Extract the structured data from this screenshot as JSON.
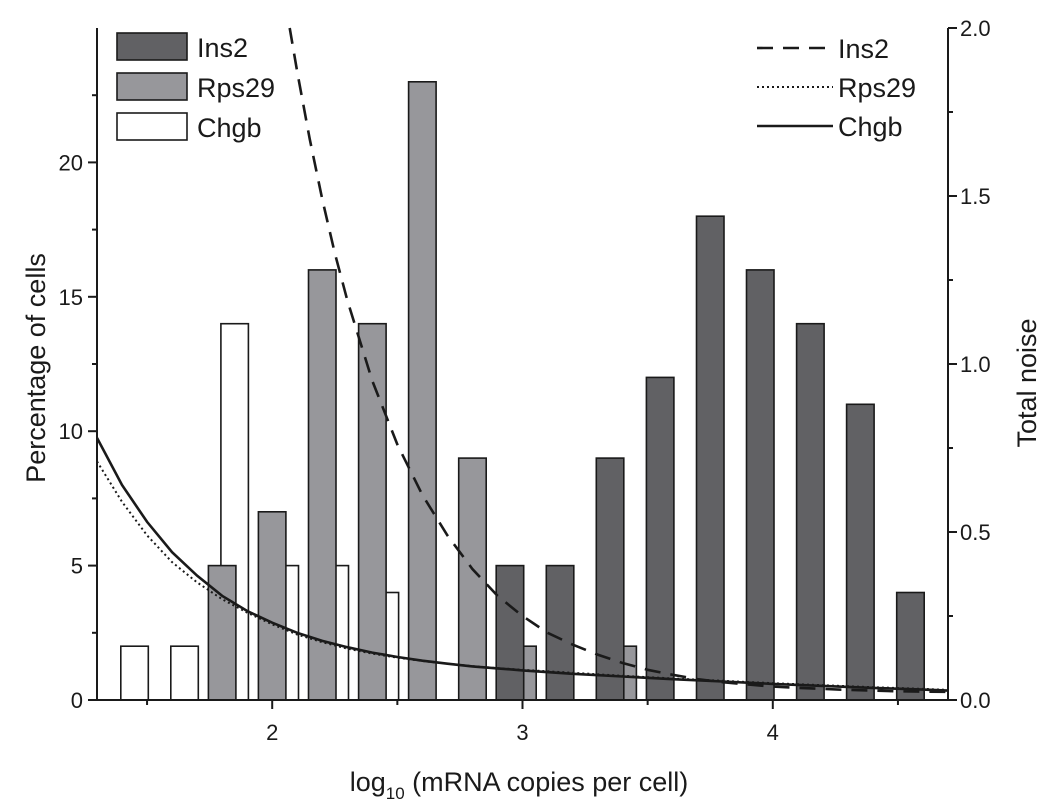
{
  "chart_data": {
    "type": "bar",
    "xlabel": "log",
    "xlabel_subscript": "10",
    "xlabel_rest": " (mRNA copies per cell)",
    "ylabel": "Percentage of cells",
    "y2label": "Total noise",
    "xlim": [
      1.3,
      4.7
    ],
    "ylim": [
      0,
      25
    ],
    "y2lim": [
      0,
      2.0
    ],
    "x_ticks": [
      2,
      3,
      4
    ],
    "x_tick_labels": [
      "2",
      "3",
      "4"
    ],
    "y_ticks": [
      0,
      5,
      10,
      15,
      20
    ],
    "y_tick_labels": [
      "0",
      "5",
      "10",
      "15",
      "20"
    ],
    "y2_ticks": [
      0,
      0.5,
      1.0,
      1.5,
      2.0
    ],
    "y2_tick_labels": [
      "0.0",
      "0.5",
      "1.0",
      "1.5",
      "2.0"
    ],
    "bar_width": 0.11,
    "bar_series": [
      {
        "name": "Chgb",
        "color": "#ffffff",
        "x": [
          1.45,
          1.65,
          1.85,
          2.05,
          2.25,
          2.45
        ],
        "values": [
          2,
          2,
          14,
          5,
          5,
          4
        ]
      },
      {
        "name": "Rps29",
        "color": "#97979b",
        "x": [
          1.8,
          2.0,
          2.2,
          2.4,
          2.6,
          2.8,
          3.0,
          3.4
        ],
        "values": [
          5,
          7,
          16,
          14,
          23,
          9,
          2,
          2
        ]
      },
      {
        "name": "Ins2",
        "color": "#616164",
        "x": [
          2.95,
          3.15,
          3.35,
          3.55,
          3.75,
          3.95,
          4.15,
          4.35,
          4.55
        ],
        "values": [
          5,
          5,
          9,
          12,
          18,
          16,
          14,
          11,
          4
        ]
      }
    ],
    "line_series": [
      {
        "name": "Ins2",
        "style": "dashed",
        "x": [
          2.07,
          2.1,
          2.15,
          2.2,
          2.25,
          2.3,
          2.4,
          2.5,
          2.6,
          2.7,
          2.8,
          2.9,
          3.0,
          3.1,
          3.2,
          3.3,
          3.4,
          3.5,
          3.6,
          3.7,
          3.8,
          3.9,
          4.0,
          4.1,
          4.2,
          4.3,
          4.4,
          4.5,
          4.6,
          4.7
        ],
        "values": [
          2.0,
          1.87,
          1.67,
          1.49,
          1.33,
          1.19,
          0.95,
          0.76,
          0.61,
          0.49,
          0.39,
          0.31,
          0.25,
          0.2,
          0.165,
          0.135,
          0.11,
          0.09,
          0.075,
          0.062,
          0.053,
          0.046,
          0.04,
          0.036,
          0.033,
          0.03,
          0.028,
          0.026,
          0.025,
          0.024
        ]
      },
      {
        "name": "Rps29",
        "style": "dotted",
        "x": [
          1.3,
          1.4,
          1.5,
          1.6,
          1.7,
          1.8,
          1.9,
          2.0,
          2.1,
          2.2,
          2.3,
          2.4,
          2.5,
          2.6,
          2.7,
          2.8,
          2.9,
          3.0,
          3.2,
          3.4,
          3.6,
          3.8,
          4.0,
          4.2,
          4.4,
          4.6,
          4.7
        ],
        "values": [
          0.71,
          0.59,
          0.49,
          0.41,
          0.35,
          0.3,
          0.26,
          0.225,
          0.195,
          0.172,
          0.153,
          0.138,
          0.126,
          0.116,
          0.108,
          0.101,
          0.095,
          0.09,
          0.081,
          0.072,
          0.064,
          0.057,
          0.05,
          0.044,
          0.038,
          0.033,
          0.03
        ]
      },
      {
        "name": "Chgb",
        "style": "solid",
        "x": [
          1.3,
          1.4,
          1.5,
          1.6,
          1.7,
          1.8,
          1.9,
          2.0,
          2.1,
          2.2,
          2.3,
          2.4,
          2.5,
          2.6,
          2.7,
          2.8,
          2.9,
          3.0,
          3.2,
          3.4,
          3.6,
          3.8,
          4.0,
          4.2,
          4.4,
          4.6,
          4.7
        ],
        "values": [
          0.78,
          0.64,
          0.53,
          0.44,
          0.37,
          0.31,
          0.265,
          0.23,
          0.2,
          0.176,
          0.157,
          0.141,
          0.128,
          0.117,
          0.108,
          0.1,
          0.094,
          0.088,
          0.078,
          0.07,
          0.062,
          0.055,
          0.048,
          0.042,
          0.036,
          0.031,
          0.028
        ]
      }
    ],
    "bar_legend": [
      {
        "label": "Ins2",
        "color": "#616164"
      },
      {
        "label": "Rps29",
        "color": "#97979b"
      },
      {
        "label": "Chgb",
        "color": "#ffffff"
      }
    ],
    "line_legend": [
      {
        "label": "Ins2",
        "style": "dashed"
      },
      {
        "label": "Rps29",
        "style": "dotted"
      },
      {
        "label": "Chgb",
        "style": "solid"
      }
    ],
    "legend_position": "top-left (bars), top-right (lines)",
    "grid": false
  }
}
